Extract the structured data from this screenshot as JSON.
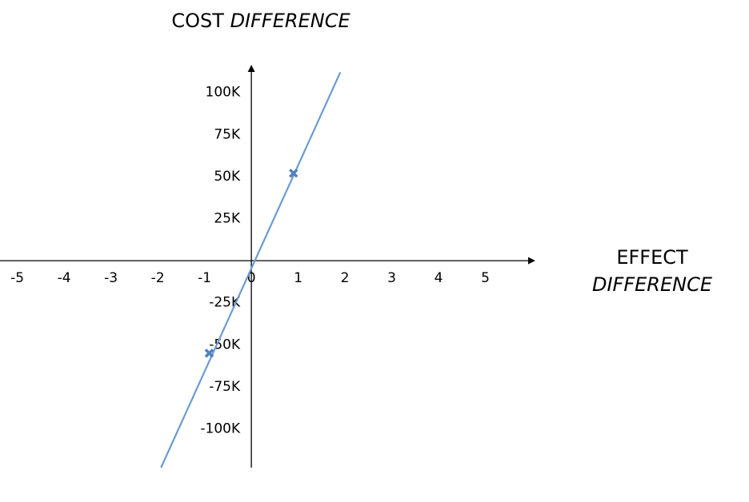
{
  "chart_data": {
    "type": "line",
    "ylabel": [
      "COST",
      "DIFFERENCE"
    ],
    "xlabel": [
      "EFFECT",
      "DIFFERENCE"
    ],
    "xlim": [
      -5.37,
      6.05
    ],
    "ylim": [
      -123000,
      116000
    ],
    "xticks": [
      -5,
      -4,
      -3,
      -2,
      -1,
      0,
      1,
      2,
      3,
      4,
      5
    ],
    "yticks": [
      {
        "value": -100000,
        "label": "-100K"
      },
      {
        "value": -75000,
        "label": "-75K"
      },
      {
        "value": -50000,
        "label": "-50K"
      },
      {
        "value": -25000,
        "label": "-25K"
      },
      {
        "value": 25000,
        "label": "25K"
      },
      {
        "value": 50000,
        "label": "50K"
      },
      {
        "value": 75000,
        "label": "75K"
      },
      {
        "value": 100000,
        "label": "100K"
      }
    ],
    "series": [
      {
        "style": "line",
        "color": "#6b9bd2",
        "x": [
          -1.93,
          1.9
        ],
        "values": [
          -123000,
          112000
        ]
      },
      {
        "style": "marker",
        "color": "#4f81bd",
        "x": [
          0.9,
          -0.9
        ],
        "values": [
          52000,
          -55000
        ]
      }
    ]
  }
}
